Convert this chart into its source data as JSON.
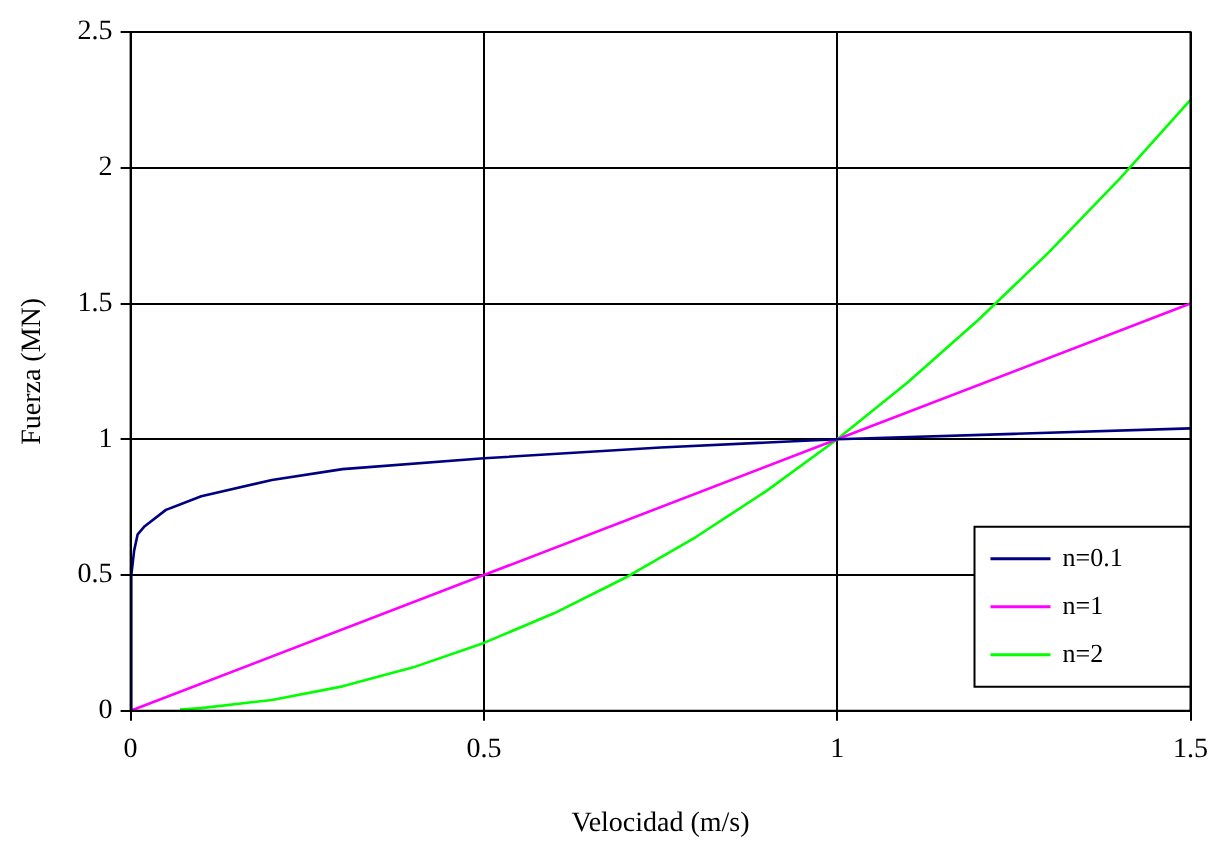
{
  "chart_data": {
    "type": "line",
    "xlabel": "Velocidad (m/s)",
    "ylabel": "Fuerza (MN)",
    "xlim": [
      0,
      1.5
    ],
    "xticks": [
      0,
      0.5,
      1,
      1.5
    ],
    "ylim": [
      0,
      2.5
    ],
    "yticks": [
      0,
      0.5,
      1,
      1.5,
      2,
      2.5
    ],
    "grid": true,
    "legend": "bottom right",
    "marker": "none",
    "line_style": "solid",
    "series": [
      {
        "name": "n=0.1",
        "color": "#000080",
        "x": [
          0,
          0.001,
          0.005,
          0.01,
          0.02,
          0.05,
          0.1,
          0.2,
          0.3,
          0.5,
          0.75,
          1,
          1.25,
          1.5
        ],
        "values": [
          0,
          0.5,
          0.59,
          0.65,
          0.68,
          0.74,
          0.79,
          0.85,
          0.89,
          0.93,
          0.97,
          1,
          1.02,
          1.04
        ]
      },
      {
        "name": "n=1",
        "color": "#ff00ff",
        "x": [
          0,
          0.5,
          1,
          1.5
        ],
        "values": [
          0,
          0.5,
          1,
          1.5
        ]
      },
      {
        "name": "n=2",
        "color": "#00ff00",
        "x": [
          0.07,
          0.1,
          0.2,
          0.3,
          0.4,
          0.5,
          0.6,
          0.7,
          0.8,
          0.9,
          1,
          1.1,
          1.2,
          1.3,
          1.4,
          1.5
        ],
        "values": [
          0.005,
          0.01,
          0.04,
          0.09,
          0.16,
          0.25,
          0.36,
          0.49,
          0.64,
          0.81,
          1,
          1.21,
          1.44,
          1.69,
          1.96,
          2.25
        ]
      }
    ]
  }
}
